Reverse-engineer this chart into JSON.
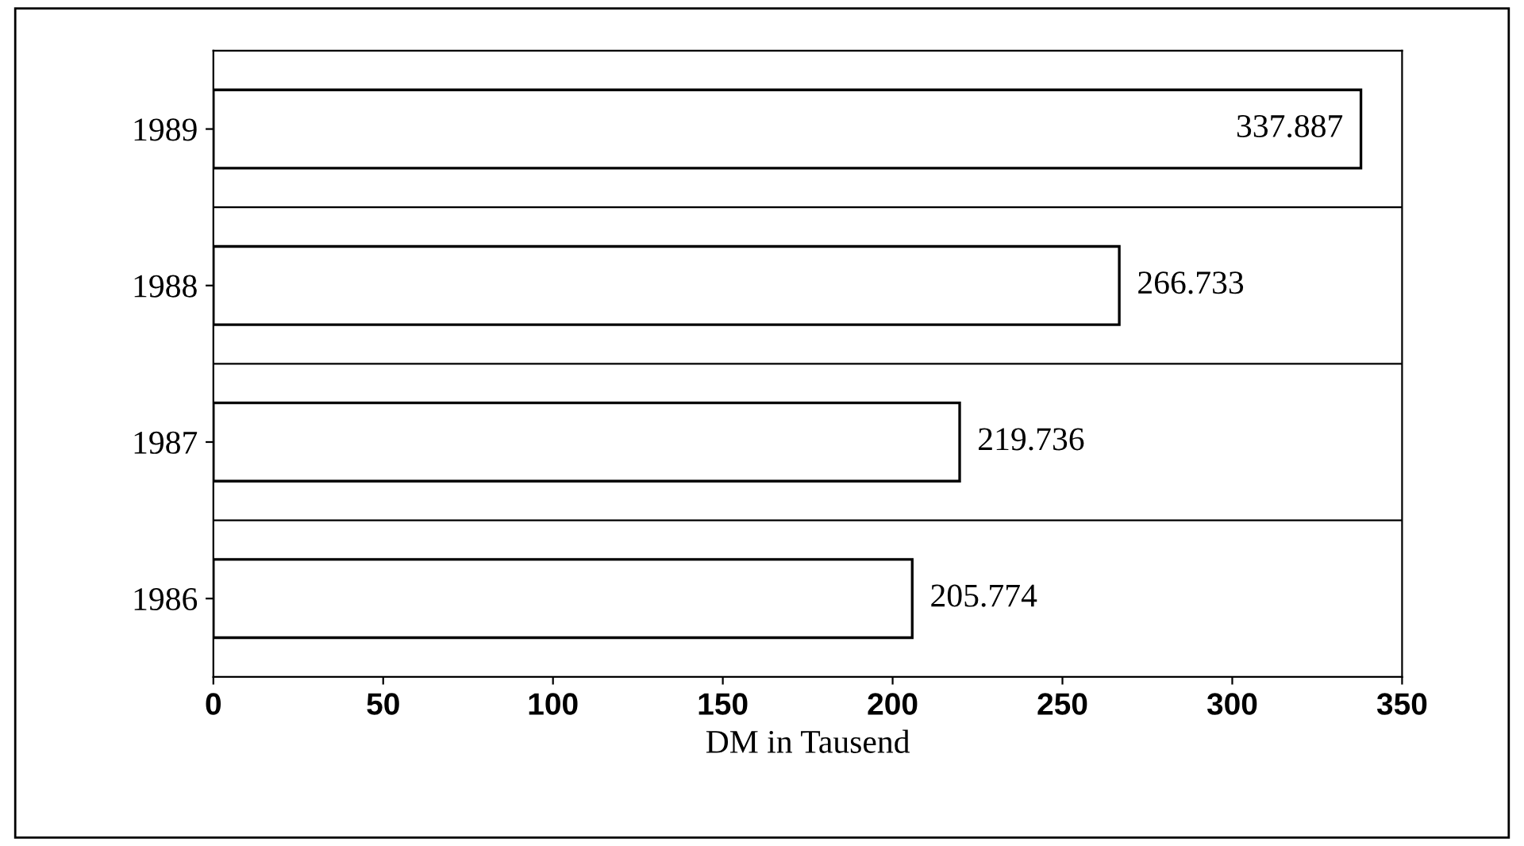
{
  "chart_data": {
    "type": "bar",
    "orientation": "horizontal",
    "xlabel": "DM in Tausend",
    "categories": [
      "1989",
      "1988",
      "1987",
      "1986"
    ],
    "values": [
      337.887,
      266.733,
      219.736,
      205.774
    ],
    "value_labels": [
      "337.887",
      "266.733",
      "219.736",
      "205.774"
    ],
    "color": "#ffffff",
    "xlim": [
      0,
      350
    ],
    "xticks": [
      0,
      50,
      100,
      150,
      200,
      250,
      300,
      350
    ],
    "grid": false,
    "legend": false
  }
}
